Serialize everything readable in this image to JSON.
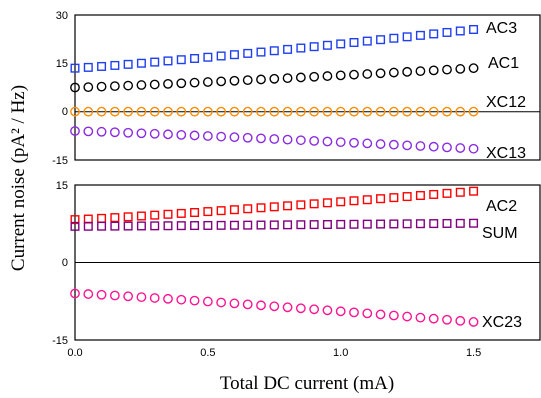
{
  "chart_data": {
    "type": "scatter",
    "xlabel": "Total DC current (mA)",
    "ylabel": "Current noise (pA² / Hz)",
    "xlim": [
      0,
      1.75
    ],
    "x_ticks": [
      "0.0",
      "0.5",
      "1.0",
      "1.5"
    ],
    "panels": [
      {
        "ylim": [
          -15,
          30
        ],
        "y_ticks": [
          "30",
          "15",
          "0",
          "-15"
        ],
        "series": [
          {
            "name": "AC3",
            "marker": "square",
            "color": "#1f3ff0",
            "y_start": 13.5,
            "y_end": 25.5
          },
          {
            "name": "AC1",
            "marker": "circle",
            "color": "#000000",
            "y_start": 7.5,
            "y_end": 13.5
          },
          {
            "name": "XC12",
            "marker": "circle",
            "color": "#ff8c00",
            "y_start": 0.0,
            "y_end": 0.0
          },
          {
            "name": "XC13",
            "marker": "circle",
            "color": "#8a2be2",
            "y_start": -6.0,
            "y_end": -11.5
          }
        ]
      },
      {
        "ylim": [
          -15,
          15
        ],
        "y_ticks": [
          "15",
          "0",
          "-15"
        ],
        "series": [
          {
            "name": "AC2",
            "marker": "square",
            "color": "#ff0000",
            "y_start": 8.3,
            "y_end": 13.8
          },
          {
            "name": "SUM",
            "marker": "square",
            "color": "#800080",
            "y_start": 7.0,
            "y_end": 7.6
          },
          {
            "name": "XC23",
            "marker": "circle",
            "color": "#ff1493",
            "y_start": -6.0,
            "y_end": -11.5
          }
        ]
      }
    ],
    "x_values": [
      0.0,
      0.05,
      0.1,
      0.15,
      0.2,
      0.25,
      0.3,
      0.35,
      0.4,
      0.45,
      0.5,
      0.55,
      0.6,
      0.65,
      0.7,
      0.75,
      0.8,
      0.85,
      0.9,
      0.95,
      1.0,
      1.05,
      1.1,
      1.15,
      1.2,
      1.25,
      1.3,
      1.35,
      1.4,
      1.45,
      1.5
    ]
  }
}
